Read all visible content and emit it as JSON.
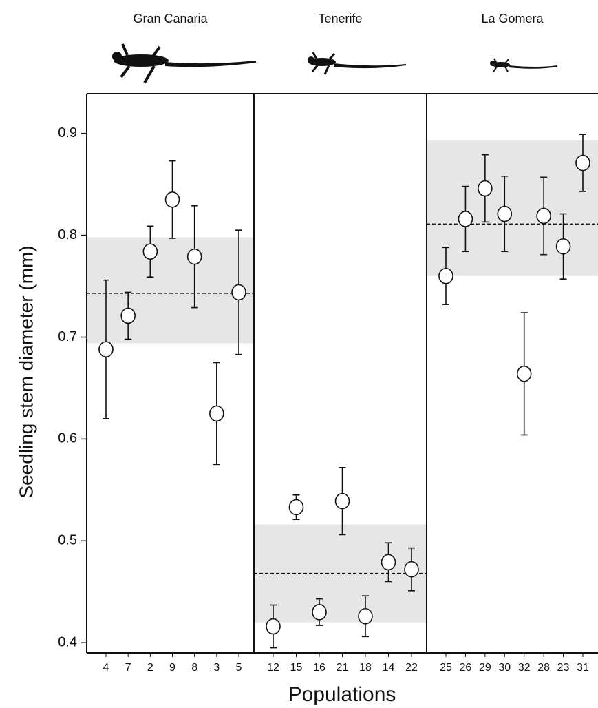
{
  "chart_data": {
    "type": "errorbar-scatter",
    "y_label": "Seedling stem diameter (mm)",
    "x_label": "Populations",
    "ylim": [
      0.39,
      0.939
    ],
    "yticks": [
      0.4,
      0.5,
      0.6,
      0.7,
      0.8,
      0.9
    ],
    "band_color": "#e6e6e6",
    "panels": [
      {
        "title": "Gran Canaria",
        "categories": [
          "4",
          "7",
          "2",
          "9",
          "8",
          "3",
          "5"
        ],
        "values": [
          0.688,
          0.721,
          0.784,
          0.835,
          0.779,
          0.625,
          0.744
        ],
        "errors": [
          0.068,
          0.023,
          0.025,
          0.038,
          0.05,
          0.05,
          0.061
        ],
        "mean": 0.743,
        "band": [
          0.694,
          0.798
        ]
      },
      {
        "title": "Tenerife",
        "categories": [
          "12",
          "15",
          "16",
          "21",
          "18",
          "14",
          "22"
        ],
        "values": [
          0.416,
          0.533,
          0.43,
          0.539,
          0.426,
          0.479,
          0.472
        ],
        "errors": [
          0.021,
          0.012,
          0.013,
          0.033,
          0.02,
          0.019,
          0.021
        ],
        "mean": 0.468,
        "band": [
          0.42,
          0.516
        ]
      },
      {
        "title": "La Gomera",
        "categories": [
          "25",
          "26",
          "29",
          "30",
          "32",
          "28",
          "23",
          "31"
        ],
        "values": [
          0.76,
          0.816,
          0.846,
          0.821,
          0.664,
          0.819,
          0.789,
          0.871
        ],
        "errors": [
          0.028,
          0.032,
          0.033,
          0.037,
          0.06,
          0.038,
          0.032,
          0.028
        ],
        "mean": 0.811,
        "band": [
          0.76,
          0.893
        ]
      }
    ]
  }
}
